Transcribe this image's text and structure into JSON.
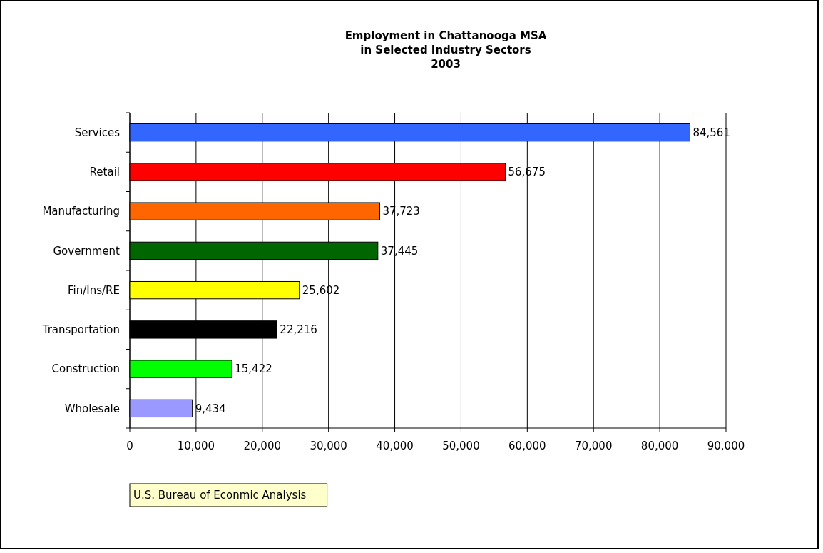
{
  "chart_data": {
    "type": "bar",
    "orientation": "horizontal",
    "title": "Employment in Chattanooga MSA\nin Selected Industry Sectors\n2003",
    "categories": [
      "Services",
      "Retail",
      "Manufacturing",
      "Government",
      "Fin/Ins/RE",
      "Transportation",
      "Construction",
      "Wholesale"
    ],
    "values": [
      84561,
      56675,
      37723,
      37445,
      25602,
      22216,
      15422,
      9434
    ],
    "colors": [
      "#3366ff",
      "#ff0000",
      "#ff6600",
      "#006600",
      "#ffff00",
      "#000000",
      "#00ff00",
      "#9999ff"
    ],
    "xlim": [
      0,
      90000
    ],
    "xticks": [
      0,
      {
        "value": 10000,
        "label": "10,000"
      },
      {
        "value": 20000,
        "label": "20,000"
      },
      {
        "value": 30000,
        "label": "30,000"
      },
      {
        "value": 40000,
        "label": "40,000"
      },
      {
        "value": 50000,
        "label": "50,000"
      },
      {
        "value": 60000,
        "label": "60,000"
      },
      {
        "value": 70000,
        "label": "70,000"
      },
      {
        "value": 80000,
        "label": "80,000"
      },
      {
        "value": 90000,
        "label": "90,000"
      }
    ],
    "grid": "x",
    "value_labels": [
      "84,561",
      "56,675",
      "37,723",
      "37,445",
      "25,602",
      "22,216",
      "15,422",
      "9,434"
    ],
    "annotations": [
      "U.S. Bureau of Econmic Analysis"
    ]
  }
}
